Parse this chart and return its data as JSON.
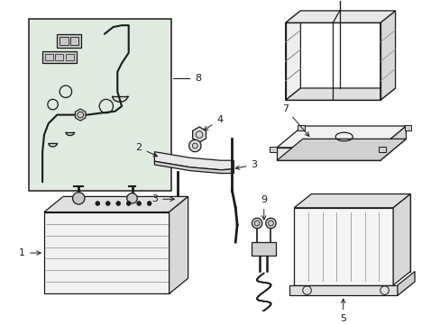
{
  "bg_color": "#ffffff",
  "line_color": "#1a1a1a",
  "fill_box": "#dde8dd",
  "fill_light": "#f5f5f5",
  "fill_mid": "#e8e8e8",
  "fill_dark": "#d0d0d0",
  "figsize": [
    4.89,
    3.6
  ],
  "dpi": 100
}
